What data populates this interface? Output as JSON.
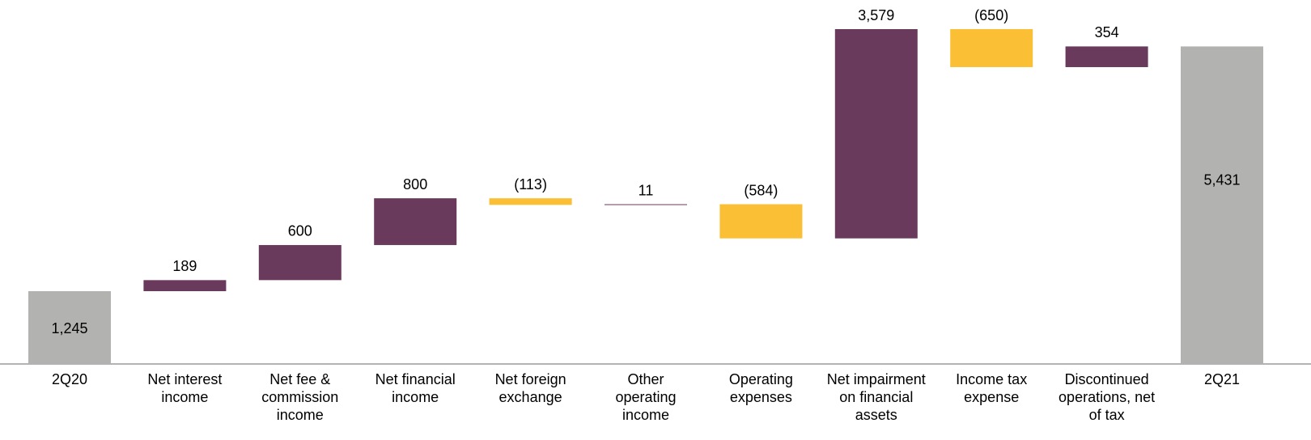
{
  "chart_data": {
    "type": "waterfall",
    "categories": [
      "2Q20",
      "Net interest income",
      "Net fee & commission income",
      "Net financial income",
      "Net foreign exchange",
      "Other operating income",
      "Operating expenses",
      "Net impairment on financial assets",
      "Income tax expense",
      "Discontinued operations, net of tax",
      "2Q21"
    ],
    "values": [
      1245,
      189,
      600,
      800,
      -113,
      11,
      -584,
      3579,
      -650,
      354,
      5431
    ],
    "value_labels": [
      "1,245",
      "189",
      "600",
      "800",
      "(113)",
      "11",
      "(584)",
      "3,579",
      "(650)",
      "354",
      "5,431"
    ],
    "totals": [
      0,
      10
    ],
    "colors": {
      "increase": "#6a3a5c",
      "decrease": "#fbbf35",
      "total": "#b2b3b1"
    }
  }
}
